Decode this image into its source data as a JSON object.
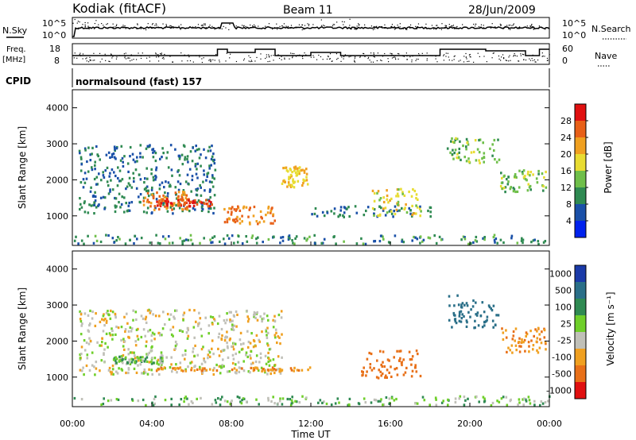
{
  "header": {
    "station": "Kodiak (fitACF)",
    "beam": "Beam 11",
    "date": "28/Jun/2009"
  },
  "strip_labels": {
    "nsky": "N.Sky",
    "nsearch": "N.Search",
    "freq_line1": "Freq.",
    "freq_line2": "[MHz]",
    "nave": "Nave",
    "cpid": "CPID",
    "cpid_value": "normalsound (fast) 157"
  },
  "nsky_ticks": [
    "10^5",
    "10^0"
  ],
  "nsearch_ticks": [
    "10^5",
    "10^0"
  ],
  "freq_ticks": [
    "18",
    "8"
  ],
  "nave_ticks": [
    "60",
    "0"
  ],
  "time_ticks": [
    "00:00",
    "04:00",
    "08:00",
    "12:00",
    "16:00",
    "20:00",
    "00:00"
  ],
  "x_title": "Time UT",
  "power_panel": {
    "ylabel": "Slant Range [km]",
    "yticks": [
      "1000",
      "2000",
      "3000",
      "4000"
    ],
    "colorbar_label": "Power [dB]",
    "colorbar_ticks": [
      "4",
      "8",
      "12",
      "16",
      "20",
      "24",
      "28"
    ],
    "colors": [
      "#0022ee",
      "#1a50a8",
      "#2f8a52",
      "#6fbf4a",
      "#e8dc32",
      "#f0a020",
      "#e86018",
      "#e01010"
    ]
  },
  "velocity_panel": {
    "ylabel": "Slant Range [km]",
    "yticks": [
      "1000",
      "2000",
      "3000",
      "4000"
    ],
    "colorbar_label": "Velocity [m s⁻¹]",
    "colorbar_ticks": [
      "1000",
      "500",
      "100",
      "25",
      "-25",
      "-100",
      "-500",
      "-1000"
    ],
    "colors": [
      "#1a3aa8",
      "#2a6f88",
      "#2f8a52",
      "#6fcf2a",
      "#c0c0b8",
      "#f0a020",
      "#e87018",
      "#e01010"
    ]
  },
  "chart_data": [
    {
      "type": "heatmap",
      "title": "Power",
      "xlabel": "Time UT",
      "ylabel": "Slant Range [km]",
      "xlim": [
        0,
        24
      ],
      "ylim": [
        180,
        4500
      ],
      "colorbar": {
        "label": "Power [dB]",
        "range": [
          0,
          30
        ]
      },
      "regions": [
        {
          "t": [
            0.3,
            7.2
          ],
          "range": [
            1100,
            3000
          ],
          "power_db": 8
        },
        {
          "t": [
            3.5,
            5.8
          ],
          "range": [
            1200,
            1700
          ],
          "power_db": 24
        },
        {
          "t": [
            4.2,
            7.0
          ],
          "range": [
            1300,
            1500
          ],
          "power_db": 28
        },
        {
          "t": [
            7.5,
            10.2
          ],
          "range": [
            800,
            1300
          ],
          "power_db": 24
        },
        {
          "t": [
            10.5,
            11.8
          ],
          "range": [
            1800,
            2400
          ],
          "power_db": 20
        },
        {
          "t": [
            12.0,
            18.0
          ],
          "range": [
            1000,
            1300
          ],
          "power_db": 8
        },
        {
          "t": [
            15.0,
            17.5
          ],
          "range": [
            1000,
            1800
          ],
          "power_db": 18
        },
        {
          "t": [
            18.8,
            21.5
          ],
          "range": [
            2500,
            3200
          ],
          "power_db": 14
        },
        {
          "t": [
            21.5,
            23.8
          ],
          "range": [
            1700,
            2300
          ],
          "power_db": 14
        },
        {
          "t": [
            0,
            24
          ],
          "range": [
            200,
            500
          ],
          "power_db": 10
        }
      ]
    },
    {
      "type": "heatmap",
      "title": "Velocity",
      "xlabel": "Time UT",
      "ylabel": "Slant Range [km]",
      "xlim": [
        0,
        24
      ],
      "ylim": [
        180,
        4500
      ],
      "colorbar": {
        "label": "Velocity [m s⁻¹]",
        "range": [
          -1000,
          1000
        ]
      },
      "regions": [
        {
          "t": [
            0.3,
            10.5
          ],
          "range": [
            1100,
            2900
          ],
          "velocity_ms": 0
        },
        {
          "t": [
            2.0,
            4.5
          ],
          "range": [
            1400,
            1600
          ],
          "velocity_ms": 60
        },
        {
          "t": [
            4.0,
            12.0
          ],
          "range": [
            1200,
            1300
          ],
          "velocity_ms": -100
        },
        {
          "t": [
            14.5,
            17.5
          ],
          "range": [
            1000,
            1800
          ],
          "velocity_ms": -300
        },
        {
          "t": [
            18.8,
            21.5
          ],
          "range": [
            2400,
            3300
          ],
          "velocity_ms": 400
        },
        {
          "t": [
            21.5,
            23.8
          ],
          "range": [
            1700,
            2400
          ],
          "velocity_ms": -100
        },
        {
          "t": [
            0,
            24
          ],
          "range": [
            200,
            500
          ],
          "velocity_ms": 50
        }
      ]
    }
  ]
}
